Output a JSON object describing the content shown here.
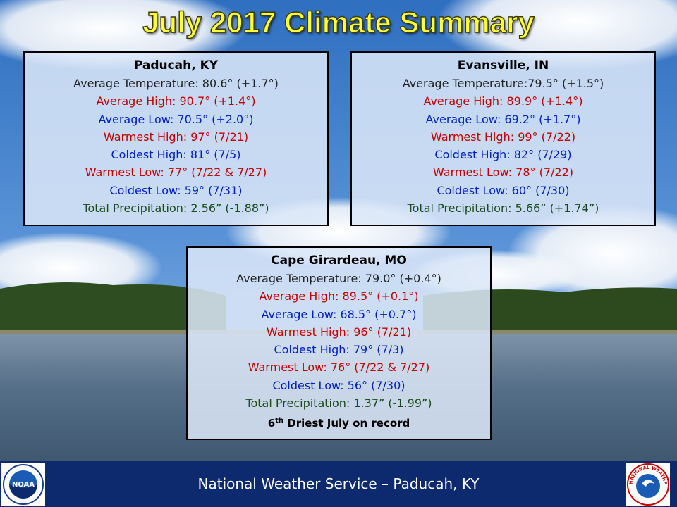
{
  "title": "July 2017 Climate Summary",
  "panels": [
    {
      "title": "Paducah, KY",
      "lines": [
        {
          "text": "Average Temperature: 80.6° (+1.7°)",
          "color": "#222222"
        },
        {
          "text": "Average High: 90.7° (+1.4°)",
          "color": "#c00000"
        },
        {
          "text": "Average Low: 70.5° (+2.0°)",
          "color": "#0020c0"
        },
        {
          "text": "Warmest High: 97° (7/21)",
          "color": "#c00000"
        },
        {
          "text": "Coldest High: 81° (7/5)",
          "color": "#0020c0"
        },
        {
          "text": "Warmest Low: 77° (7/22 & 7/27)",
          "color": "#c00000"
        },
        {
          "text": "Coldest Low: 59° (7/31)",
          "color": "#0020c0"
        },
        {
          "text": "Total Precipitation: 2.56” (-1.88”)",
          "color": "#1a4a1a"
        }
      ]
    },
    {
      "title": "Evansville, IN",
      "lines": [
        {
          "text": "Average Temperature:79.5° (+1.5°)",
          "color": "#222222"
        },
        {
          "text": "Average High: 89.9° (+1.4°)",
          "color": "#c00000"
        },
        {
          "text": "Average Low: 69.2° (+1.7°)",
          "color": "#0020c0"
        },
        {
          "text": "Warmest High: 99° (7/22)",
          "color": "#c00000"
        },
        {
          "text": "Coldest High: 82° (7/29)",
          "color": "#0020c0"
        },
        {
          "text": "Warmest Low: 78° (7/22)",
          "color": "#c00000"
        },
        {
          "text": "Coldest Low: 60° (7/30)",
          "color": "#0020c0"
        },
        {
          "text": "Total Precipitation: 5.66” (+1.74”)",
          "color": "#1a4a1a"
        }
      ]
    },
    {
      "title": "Cape Girardeau, MO",
      "lines": [
        {
          "text": "Average Temperature: 79.0° (+0.4°)",
          "color": "#222222"
        },
        {
          "text": "Average High: 89.5° (+0.1°)",
          "color": "#c00000"
        },
        {
          "text": "Average Low: 68.5° (+0.7°)",
          "color": "#0020c0"
        },
        {
          "text": "Warmest High: 96° (7/21)",
          "color": "#c00000"
        },
        {
          "text": "Coldest High: 79° (7/3)",
          "color": "#0020c0"
        },
        {
          "text": "Warmest Low: 76° (7/22 & 7/27)",
          "color": "#c00000"
        },
        {
          "text": "Coldest Low: 56° (7/30)",
          "color": "#0020c0"
        },
        {
          "text": "Total Precipitation: 1.37” (-1.99”)",
          "color": "#1a4a1a"
        }
      ],
      "note": {
        "number": "6",
        "suffix": "th",
        "text": "Driest July on record"
      }
    }
  ],
  "footer": "National Weather Service – Paducah, KY",
  "logos": {
    "left": "NOAA",
    "right": "NATIONAL WEATHER SERVICE"
  }
}
